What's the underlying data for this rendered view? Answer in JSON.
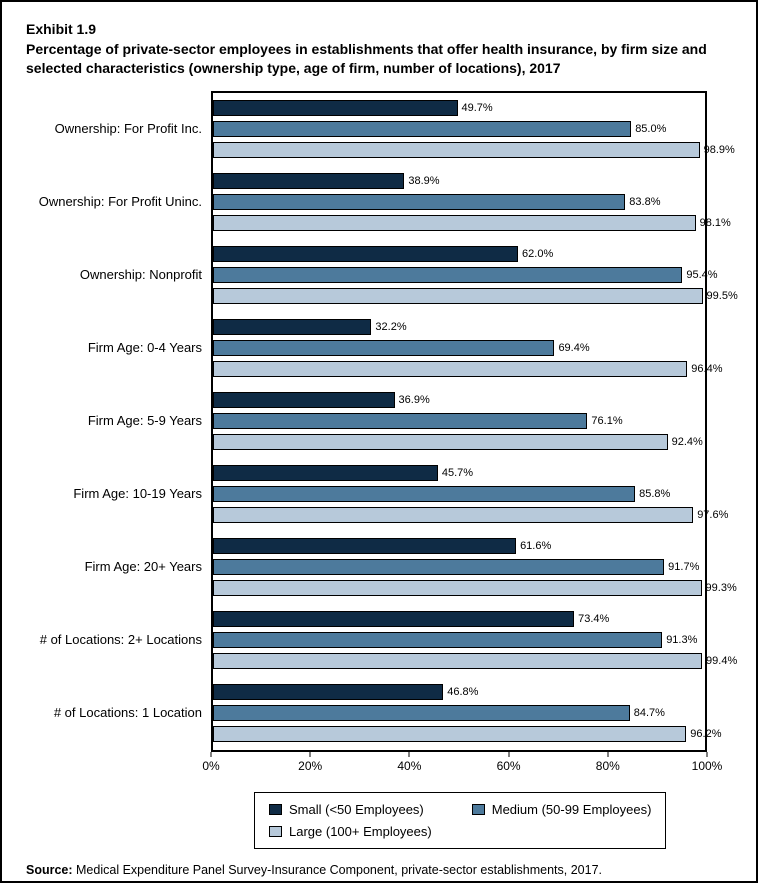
{
  "header": {
    "exhibit": "Exhibit 1.9",
    "title": "Percentage of private-sector employees in establishments that offer health insurance, by firm size and selected characteristics (ownership type, age of firm, number of locations), 2017"
  },
  "chart_data": {
    "type": "bar",
    "orientation": "horizontal",
    "title": "Percentage of private-sector employees in establishments that offer health insurance, by firm size and selected characteristics (ownership type, age of firm, number of locations), 2017",
    "xlabel": "",
    "ylabel": "",
    "xlim": [
      0,
      100
    ],
    "x_ticks": [
      "0%",
      "20%",
      "40%",
      "60%",
      "80%",
      "100%"
    ],
    "grid": false,
    "legend_position": "bottom",
    "categories": [
      "Ownership: For Profit Inc.",
      "Ownership: For Profit Uninc.",
      "Ownership: Nonprofit",
      "Firm Age: 0-4 Years",
      "Firm Age: 5-9 Years",
      "Firm Age: 10-19 Years",
      "Firm Age: 20+ Years",
      "# of Locations: 2+ Locations",
      "# of Locations: 1 Location"
    ],
    "series": [
      {
        "key": "small",
        "name": "Small (<50 Employees)",
        "color": "#0f2b45",
        "values": [
          49.7,
          38.9,
          62.0,
          32.2,
          36.9,
          45.7,
          61.6,
          73.4,
          46.8
        ]
      },
      {
        "key": "medium",
        "name": "Medium (50-99 Employees)",
        "color": "#4d7a9c",
        "values": [
          85.0,
          83.8,
          95.4,
          69.4,
          76.1,
          85.8,
          91.7,
          91.3,
          84.7
        ]
      },
      {
        "key": "large",
        "name": "Large (100+ Employees)",
        "color": "#b7c9da",
        "values": [
          98.9,
          98.1,
          99.5,
          96.4,
          92.4,
          97.6,
          99.3,
          99.4,
          96.2
        ]
      }
    ]
  },
  "source": {
    "label": "Source:",
    "text": " Medical Expenditure Panel Survey-Insurance Component, private-sector establishments, 2017."
  }
}
